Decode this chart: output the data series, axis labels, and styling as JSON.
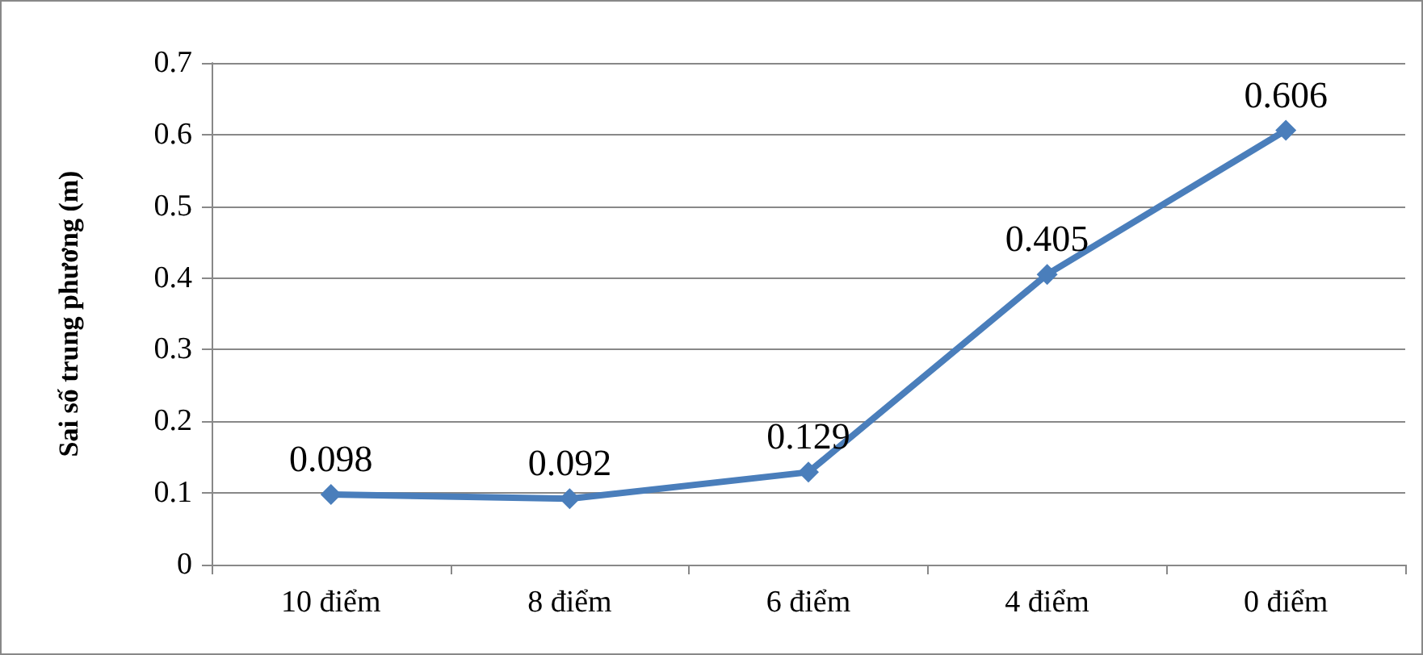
{
  "chart_data": {
    "type": "line",
    "ylabel": "Sai số trung phương (m)",
    "categories": [
      "10 điểm",
      "8 điểm",
      "6 điểm",
      "4 điểm",
      "0 điểm"
    ],
    "values": [
      0.098,
      0.092,
      0.129,
      0.405,
      0.606
    ],
    "color": "#4a7ebb",
    "ylim": [
      0,
      0.7
    ],
    "yticks": [
      0,
      0.1,
      0.2,
      0.3,
      0.4,
      0.5,
      0.6,
      0.7
    ],
    "grid": "y",
    "marker": "diamond",
    "line_style": "solid",
    "data_labels": true
  }
}
